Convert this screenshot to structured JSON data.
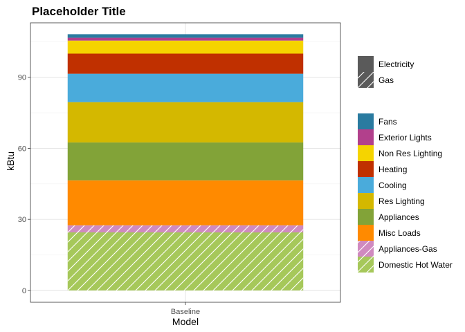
{
  "chart_data": {
    "type": "bar",
    "stacked": true,
    "title": "Placeholder Title",
    "xlabel": "Model",
    "ylabel": "kBtu",
    "categories": [
      "Baseline"
    ],
    "ylim": [
      -5,
      113
    ],
    "yticks": [
      0,
      30,
      60,
      90
    ],
    "grid": true,
    "legend_position": "right",
    "fuel_legend": [
      {
        "label": "Electricity",
        "pattern": "solid"
      },
      {
        "label": "Gas",
        "pattern": "hatched"
      }
    ],
    "series": [
      {
        "name": "Domestic Hot Water",
        "values": [
          24.5
        ],
        "color": "#a6c85a",
        "fuel": "Gas"
      },
      {
        "name": "Appliances-Gas",
        "values": [
          3.0
        ],
        "color": "#d08ac0",
        "fuel": "Gas"
      },
      {
        "name": "Misc Loads",
        "values": [
          19.0
        ],
        "color": "#ff8a00",
        "fuel": "Electricity"
      },
      {
        "name": "Appliances",
        "values": [
          16.0
        ],
        "color": "#82a338",
        "fuel": "Electricity"
      },
      {
        "name": "Res Lighting",
        "values": [
          17.0
        ],
        "color": "#d4b800",
        "fuel": "Electricity"
      },
      {
        "name": "Cooling",
        "values": [
          12.0
        ],
        "color": "#4aabdb",
        "fuel": "Electricity"
      },
      {
        "name": "Heating",
        "values": [
          8.5
        ],
        "color": "#c03000",
        "fuel": "Electricity"
      },
      {
        "name": "Non Res Lighting",
        "values": [
          5.5
        ],
        "color": "#f5d400",
        "fuel": "Electricity"
      },
      {
        "name": "Exterior Lights",
        "values": [
          1.2
        ],
        "color": "#b2408c",
        "fuel": "Electricity"
      },
      {
        "name": "Fans",
        "values": [
          1.5
        ],
        "color": "#2a7ba0",
        "fuel": "Electricity"
      }
    ]
  }
}
